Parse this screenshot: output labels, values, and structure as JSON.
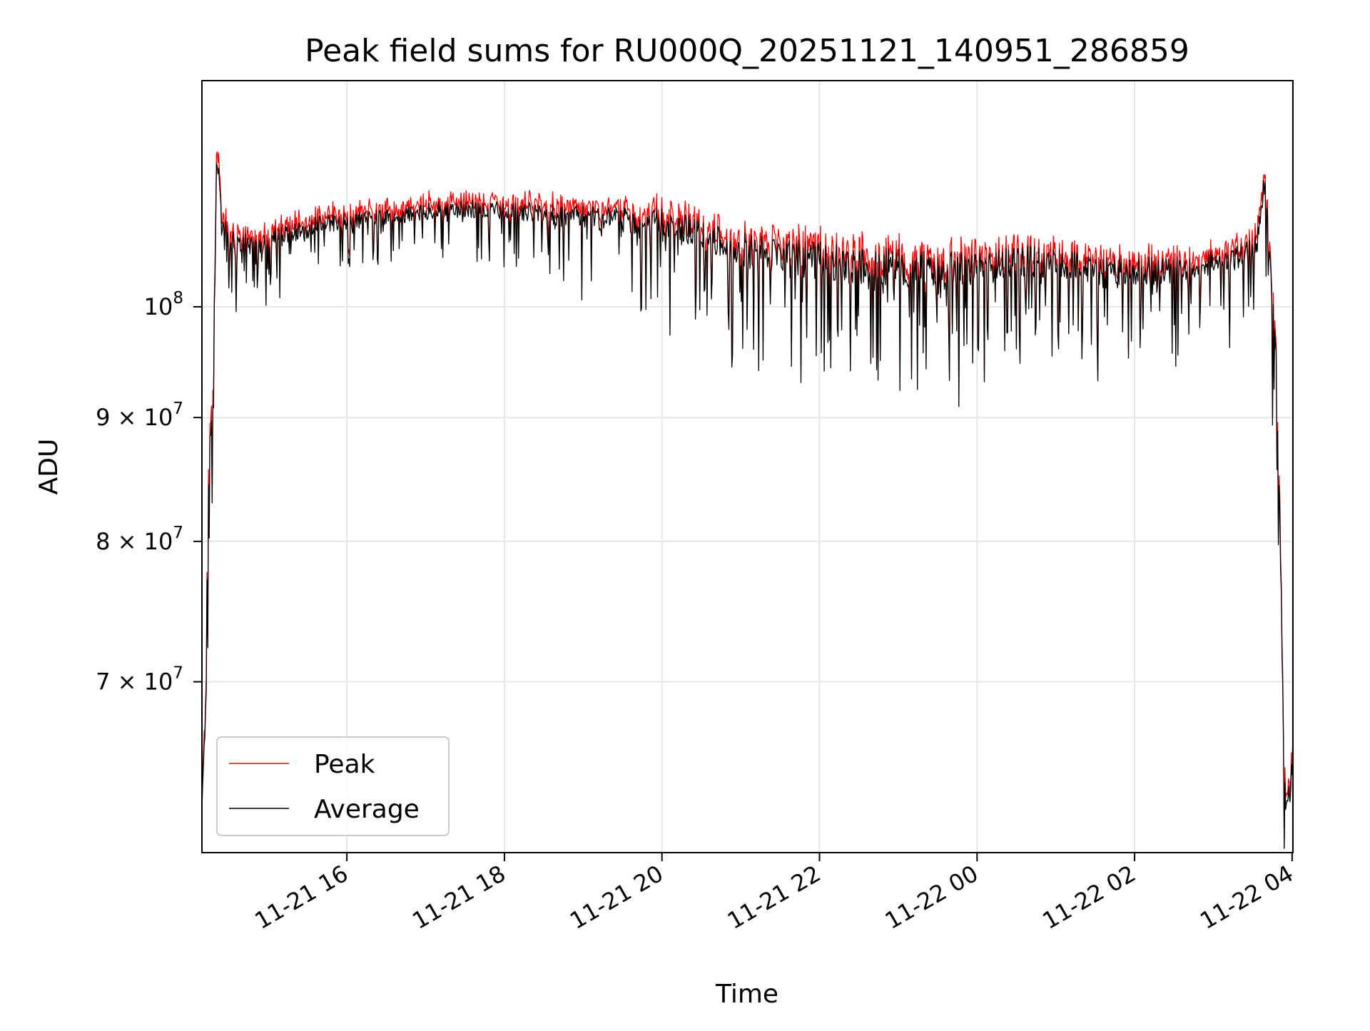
{
  "chart_data": {
    "type": "line",
    "title": "Peak field sums for RU000Q_20251121_140951_286859",
    "xlabel": "Time",
    "ylabel": "ADU",
    "yscale": "log",
    "ylim": [
      59500000,
      124000000
    ],
    "xlim_hours": [
      14.16,
      28.01
    ],
    "x_reference_date": "2025-11-21",
    "grid": true,
    "legend_position": "lower-left",
    "x_ticks": [
      {
        "hours": 16,
        "label": "11-21 16"
      },
      {
        "hours": 18,
        "label": "11-21 18"
      },
      {
        "hours": 20,
        "label": "11-21 20"
      },
      {
        "hours": 22,
        "label": "11-21 22"
      },
      {
        "hours": 24,
        "label": "11-22 00"
      },
      {
        "hours": 26,
        "label": "11-22 02"
      },
      {
        "hours": 28,
        "label": "11-22 04"
      }
    ],
    "y_ticks": [
      {
        "value": 100000000,
        "base": "10",
        "exp": "8"
      },
      {
        "value": 90000000,
        "base": "9 × 10",
        "exp": "7"
      },
      {
        "value": 80000000,
        "base": "8 × 10",
        "exp": "7"
      },
      {
        "value": 70000000,
        "base": "7 × 10",
        "exp": "7"
      }
    ],
    "series": [
      {
        "name": "Peak",
        "color": "#ff0000"
      },
      {
        "name": "Average",
        "color": "#000000"
      }
    ],
    "envelope": {
      "hours": [
        14.16,
        14.2,
        14.25,
        14.3,
        14.35,
        14.4,
        14.5,
        14.8,
        15.2,
        15.6,
        16.0,
        16.5,
        17.0,
        17.5,
        18.0,
        18.5,
        19.0,
        19.5,
        20.0,
        20.5,
        21.0,
        21.5,
        22.0,
        22.5,
        23.0,
        23.5,
        24.0,
        24.5,
        25.0,
        25.5,
        26.0,
        26.5,
        27.0,
        27.3,
        27.55,
        27.65,
        27.7,
        27.75,
        27.8,
        27.85,
        27.9,
        27.95,
        28.01
      ],
      "base_adu": [
        62000000,
        66500000,
        86000000,
        91000000,
        116000000,
        110000000,
        106500000,
        106000000,
        107000000,
        108000000,
        108500000,
        108800000,
        109500000,
        109800000,
        109600000,
        109200000,
        108800000,
        108700000,
        108500000,
        107000000,
        105500000,
        105000000,
        104500000,
        104000000,
        103800000,
        103700000,
        103500000,
        104500000,
        104300000,
        103600000,
        103500000,
        103500000,
        104200000,
        104800000,
        106000000,
        112000000,
        108000000,
        100000000,
        94500000,
        79000000,
        63000000,
        62500000,
        65000000
      ],
      "spread_adu": [
        2000000,
        2500000,
        3500000,
        4000000,
        6000000,
        2500000,
        2800000,
        3000000,
        3000000,
        2800000,
        2600000,
        2400000,
        2500000,
        2700000,
        2900000,
        3200000,
        3600000,
        4000000,
        4300000,
        4700000,
        5200000,
        5400000,
        5600000,
        5600000,
        5500000,
        5300000,
        5000000,
        4500000,
        4300000,
        4200000,
        4000000,
        3800000,
        3600000,
        3500000,
        3500000,
        4000000,
        4000000,
        4500000,
        4000000,
        4000000,
        3000000,
        2000000,
        2000000
      ],
      "peak_offset_adu": [
        600000,
        700000,
        900000,
        900000,
        1500000,
        1000000,
        900000,
        900000,
        900000,
        900000,
        900000,
        900000,
        900000,
        950000,
        1000000,
        1000000,
        1000000,
        1000000,
        1100000,
        1100000,
        1200000,
        1200000,
        1200000,
        1200000,
        1100000,
        1100000,
        1100000,
        1000000,
        1000000,
        1000000,
        1000000,
        1000000,
        1000000,
        1000000,
        1000000,
        1200000,
        1200000,
        1100000,
        1000000,
        900000,
        600000,
        600000,
        600000
      ]
    }
  }
}
